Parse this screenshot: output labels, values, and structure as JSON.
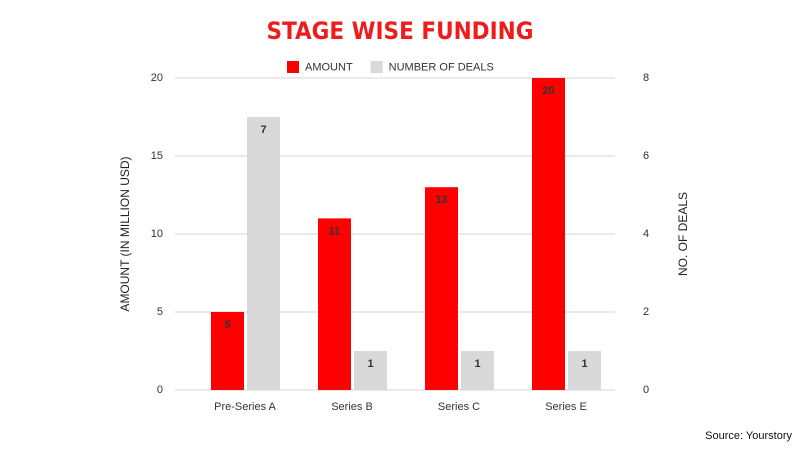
{
  "chart_data": {
    "type": "bar",
    "title": "STAGE WISE FUNDING",
    "categories": [
      "Pre-Series A",
      "Series B",
      "Series C",
      "Series E"
    ],
    "series": [
      {
        "name": "AMOUNT",
        "color": "#ff0000",
        "values": [
          5,
          11,
          13,
          20
        ]
      },
      {
        "name": "NUMBER OF DEALS",
        "color": "#d9d9d9",
        "values": [
          7,
          1,
          1,
          1
        ],
        "axis": "y2"
      }
    ],
    "ylabel": "AMOUNT (IN MILLION USD)",
    "y2label": "NO. OF DEALS",
    "ylim": [
      0,
      20
    ],
    "yticks": [
      0,
      5,
      10,
      15,
      20
    ],
    "y2lim": [
      0,
      8
    ],
    "y2ticks": [
      0,
      2,
      4,
      6,
      8
    ],
    "grid": true,
    "legend": "top",
    "source": "Source: Yourstory"
  }
}
